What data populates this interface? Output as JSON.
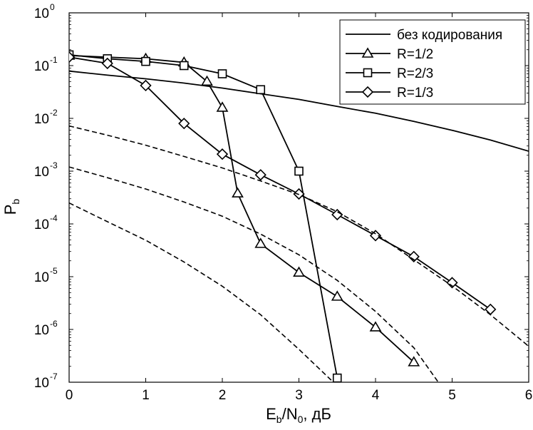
{
  "chart_data": {
    "type": "line",
    "xlabel": {
      "main": "E",
      "sub1": "b",
      "mid": "/N",
      "sub2": "0",
      "tail": ", дБ"
    },
    "ylabel": {
      "main": "P",
      "sub": "b"
    },
    "xlim": [
      0,
      6
    ],
    "ylim": [
      1e-07,
      1
    ],
    "yscale": "log",
    "xticks": [
      0,
      1,
      2,
      3,
      4,
      5,
      6
    ],
    "xtick_labels": [
      "0",
      "1",
      "2",
      "3",
      "4",
      "5",
      "6"
    ],
    "yticks": [
      {
        "value": 1.0,
        "base": "10",
        "exp": "0"
      },
      {
        "value": 0.1,
        "base": "10",
        "exp": "-1"
      },
      {
        "value": 0.01,
        "base": "10",
        "exp": "-2"
      },
      {
        "value": 0.001,
        "base": "10",
        "exp": "-3"
      },
      {
        "value": 0.0001,
        "base": "10",
        "exp": "-4"
      },
      {
        "value": 1e-05,
        "base": "10",
        "exp": "-5"
      },
      {
        "value": 1e-06,
        "base": "10",
        "exp": "-6"
      },
      {
        "value": 1e-07,
        "base": "10",
        "exp": "-7"
      }
    ],
    "legend_position": "top-right",
    "series": [
      {
        "name": "без кодирования",
        "style": "solid",
        "marker": "none",
        "points": [
          [
            0,
            0.0786
          ],
          [
            0.5,
            0.066
          ],
          [
            1,
            0.0563
          ],
          [
            1.5,
            0.0466
          ],
          [
            2,
            0.0375
          ],
          [
            2.5,
            0.0293
          ],
          [
            3,
            0.0229
          ],
          [
            3.5,
            0.0168
          ],
          [
            4,
            0.0125
          ],
          [
            4.5,
            0.00876
          ],
          [
            5,
            0.00595
          ],
          [
            5.5,
            0.00388
          ],
          [
            6,
            0.00239
          ]
        ]
      },
      {
        "name": "R=1/2",
        "style": "solid",
        "marker": "triangle",
        "points": [
          [
            0,
            0.155
          ],
          [
            1,
            0.135
          ],
          [
            1.5,
            0.115
          ],
          [
            1.8,
            0.05
          ],
          [
            2,
            0.016
          ],
          [
            2.2,
            0.00038
          ],
          [
            2.5,
            4.2e-05
          ],
          [
            3,
            1.2e-05
          ],
          [
            3.5,
            4.2e-06
          ],
          [
            4,
            1.1e-06
          ],
          [
            4.5,
            2.4e-07
          ]
        ]
      },
      {
        "name": "R=2/3",
        "style": "solid",
        "marker": "square",
        "points": [
          [
            0,
            0.16
          ],
          [
            0.5,
            0.135
          ],
          [
            1,
            0.12
          ],
          [
            1.5,
            0.1
          ],
          [
            2,
            0.07
          ],
          [
            2.5,
            0.035
          ],
          [
            3,
            0.001
          ],
          [
            3.5,
            1.2e-07
          ]
        ]
      },
      {
        "name": "R=1/3",
        "style": "solid",
        "marker": "diamond",
        "points": [
          [
            0,
            0.145
          ],
          [
            0.5,
            0.11
          ],
          [
            1,
            0.042
          ],
          [
            1.5,
            0.008
          ],
          [
            2,
            0.0021
          ],
          [
            2.5,
            0.00085
          ],
          [
            3,
            0.00037
          ],
          [
            3.5,
            0.00015
          ],
          [
            4,
            6e-05
          ],
          [
            4.5,
            2.4e-05
          ],
          [
            5,
            7.7e-06
          ],
          [
            5.5,
            2.4e-06
          ]
        ]
      },
      {
        "name": "",
        "style": "dashed",
        "marker": "none",
        "points": [
          [
            0,
            0.0072
          ],
          [
            0.5,
            0.0048
          ],
          [
            1,
            0.0031
          ],
          [
            1.5,
            0.0019
          ],
          [
            2,
            0.00115
          ],
          [
            2.5,
            0.00065
          ],
          [
            3,
            0.00036
          ],
          [
            3.5,
            0.00017
          ],
          [
            4,
            6.5e-05
          ],
          [
            4.5,
            2.1e-05
          ],
          [
            5,
            6.7e-06
          ],
          [
            5.5,
            1.9e-06
          ],
          [
            6,
            4.8e-07
          ]
        ]
      },
      {
        "name": "",
        "style": "dashed",
        "marker": "none",
        "points": [
          [
            0,
            0.0012
          ],
          [
            0.5,
            0.00075
          ],
          [
            1,
            0.00046
          ],
          [
            1.5,
            0.00026
          ],
          [
            2,
            0.00014
          ],
          [
            2.5,
            6.4e-05
          ],
          [
            3,
            2.6e-05
          ],
          [
            3.5,
            8.5e-06
          ],
          [
            4,
            2.2e-06
          ],
          [
            4.5,
            4.5e-07
          ],
          [
            4.82,
            1e-07
          ]
        ]
      },
      {
        "name": "",
        "style": "dashed",
        "marker": "none",
        "points": [
          [
            0,
            0.00025
          ],
          [
            0.5,
            0.00011
          ],
          [
            1,
            4.9e-05
          ],
          [
            1.5,
            1.9e-05
          ],
          [
            2,
            6.6e-06
          ],
          [
            2.5,
            1.9e-06
          ],
          [
            3,
            4.2e-07
          ],
          [
            3.45,
            1e-07
          ]
        ]
      }
    ]
  }
}
